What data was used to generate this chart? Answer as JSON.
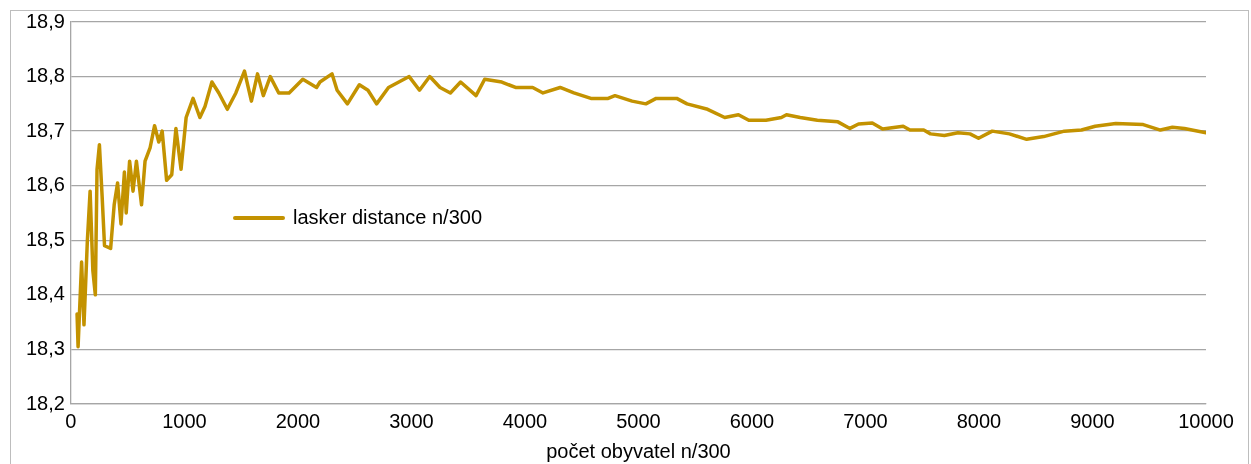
{
  "chart_data": {
    "type": "line",
    "xlabel": "počet obyvatel n/300",
    "xlim": [
      0,
      10000
    ],
    "xticks": [
      0,
      1000,
      2000,
      3000,
      4000,
      5000,
      6000,
      7000,
      8000,
      9000,
      10000
    ],
    "ylim": [
      18.2,
      18.9
    ],
    "yticks": [
      {
        "value": 18.2,
        "label": "18,2"
      },
      {
        "value": 18.3,
        "label": "18,3"
      },
      {
        "value": 18.4,
        "label": "18,4"
      },
      {
        "value": 18.5,
        "label": "18,5"
      },
      {
        "value": 18.6,
        "label": "18,6"
      },
      {
        "value": 18.7,
        "label": "18,7"
      },
      {
        "value": 18.8,
        "label": "18,8"
      },
      {
        "value": 18.9,
        "label": "18,9"
      }
    ],
    "grid": "y",
    "legend": "left",
    "marker": "none",
    "line_style": "solid",
    "series": [
      {
        "name": "lasker distance n/300",
        "color": "#c39200",
        "x": [
          54,
          63,
          94,
          115,
          145,
          169,
          193,
          215,
          230,
          251,
          275,
          296,
          350,
          381,
          411,
          441,
          471,
          487,
          517,
          547,
          577,
          622,
          653,
          698,
          737,
          774,
          804,
          843,
          888,
          925,
          970,
          1015,
          1076,
          1136,
          1181,
          1242,
          1303,
          1378,
          1453,
          1529,
          1590,
          1644,
          1695,
          1756,
          1831,
          1922,
          2043,
          2164,
          2194,
          2300,
          2345,
          2436,
          2541,
          2617,
          2693,
          2798,
          2980,
          3071,
          3161,
          3252,
          3343,
          3433,
          3569,
          3645,
          3796,
          3917,
          4068,
          4159,
          4310,
          4431,
          4581,
          4733,
          4793,
          4944,
          5065,
          5156,
          5337,
          5428,
          5609,
          5760,
          5881,
          5972,
          6123,
          6259,
          6304,
          6425,
          6576,
          6757,
          6863,
          6939,
          7060,
          7151,
          7332,
          7392,
          7513,
          7573,
          7695,
          7815,
          7921,
          7996,
          8117,
          8268,
          8420,
          8570,
          8752,
          8903,
          9024,
          9205,
          9447,
          9598,
          9704,
          9810,
          10000
        ],
        "values": [
          18.365,
          18.305,
          18.46,
          18.345,
          18.5,
          18.59,
          18.445,
          18.4,
          18.63,
          18.675,
          18.58,
          18.49,
          18.485,
          18.565,
          18.605,
          18.53,
          18.625,
          18.55,
          18.645,
          18.59,
          18.645,
          18.565,
          18.645,
          18.67,
          18.71,
          18.68,
          18.7,
          18.61,
          18.62,
          18.705,
          18.63,
          18.725,
          18.76,
          18.725,
          18.745,
          18.79,
          18.77,
          18.74,
          18.77,
          18.81,
          18.755,
          18.805,
          18.765,
          18.8,
          18.77,
          18.77,
          18.795,
          18.78,
          18.79,
          18.805,
          18.775,
          18.75,
          18.785,
          18.775,
          18.75,
          18.78,
          18.8,
          18.775,
          18.8,
          18.78,
          18.77,
          18.79,
          18.765,
          18.795,
          18.79,
          18.78,
          18.78,
          18.77,
          18.78,
          18.77,
          18.76,
          18.76,
          18.765,
          18.755,
          18.75,
          18.76,
          18.76,
          18.75,
          18.74,
          18.725,
          18.73,
          18.72,
          18.72,
          18.725,
          18.73,
          18.725,
          18.72,
          18.717,
          18.705,
          18.713,
          18.715,
          18.704,
          18.709,
          18.702,
          18.702,
          18.695,
          18.692,
          18.697,
          18.695,
          18.687,
          18.7,
          18.695,
          18.685,
          18.69,
          18.7,
          18.702,
          18.709,
          18.714,
          18.712,
          18.702,
          18.707,
          18.705,
          18.697
        ]
      }
    ]
  }
}
